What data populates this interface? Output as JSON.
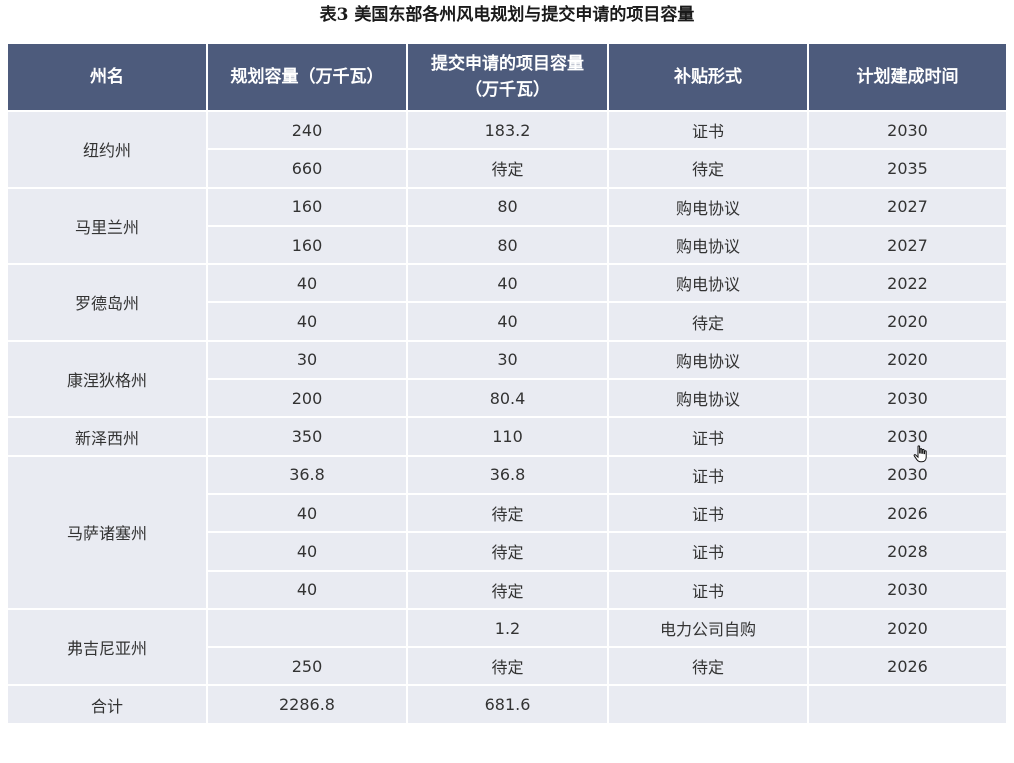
{
  "title": "表3 美国东部各州风电规划与提交申请的项目容量",
  "headers": {
    "state": "州名",
    "planned_line1": "规划容量（万千瓦）",
    "submitted_line1": "提交申请的项目容量",
    "submitted_line2": "（万千瓦）",
    "subsidy": "补贴形式",
    "completion": "计划建成时间"
  },
  "states": [
    {
      "name": "纽约州",
      "rows": [
        {
          "planned": "240",
          "submitted": "183.2",
          "subsidy": "证书",
          "year": "2030"
        },
        {
          "planned": "660",
          "submitted": "待定",
          "subsidy": "待定",
          "year": "2035"
        }
      ]
    },
    {
      "name": "马里兰州",
      "rows": [
        {
          "planned": "160",
          "submitted": "80",
          "subsidy": "购电协议",
          "year": "2027"
        },
        {
          "planned": "160",
          "submitted": "80",
          "subsidy": "购电协议",
          "year": "2027"
        }
      ]
    },
    {
      "name": "罗德岛州",
      "rows": [
        {
          "planned": "40",
          "submitted": "40",
          "subsidy": "购电协议",
          "year": "2022"
        },
        {
          "planned": "40",
          "submitted": "40",
          "subsidy": "待定",
          "year": "2020"
        }
      ]
    },
    {
      "name": "康涅狄格州",
      "rows": [
        {
          "planned": "30",
          "submitted": "30",
          "subsidy": "购电协议",
          "year": "2020"
        },
        {
          "planned": "200",
          "submitted": "80.4",
          "subsidy": "购电协议",
          "year": "2030"
        }
      ]
    },
    {
      "name": "新泽西州",
      "rows": [
        {
          "planned": "350",
          "submitted": "110",
          "subsidy": "证书",
          "year": "2030"
        }
      ]
    },
    {
      "name": "马萨诸塞州",
      "rows": [
        {
          "planned": "36.8",
          "submitted": "36.8",
          "subsidy": "证书",
          "year": "2030"
        },
        {
          "planned": "40",
          "submitted": "待定",
          "subsidy": "证书",
          "year": "2026"
        },
        {
          "planned": "40",
          "submitted": "待定",
          "subsidy": "证书",
          "year": "2028"
        },
        {
          "planned": "40",
          "submitted": "待定",
          "subsidy": "证书",
          "year": "2030"
        }
      ]
    },
    {
      "name": "弗吉尼亚州",
      "rows": [
        {
          "planned": "",
          "submitted": "1.2",
          "subsidy": "电力公司自购",
          "year": "2020"
        },
        {
          "planned": "250",
          "submitted": "待定",
          "subsidy": "待定",
          "year": "2026"
        }
      ]
    }
  ],
  "total": {
    "label": "合计",
    "planned": "2286.8",
    "submitted": "681.6",
    "subsidy": "",
    "year": ""
  }
}
